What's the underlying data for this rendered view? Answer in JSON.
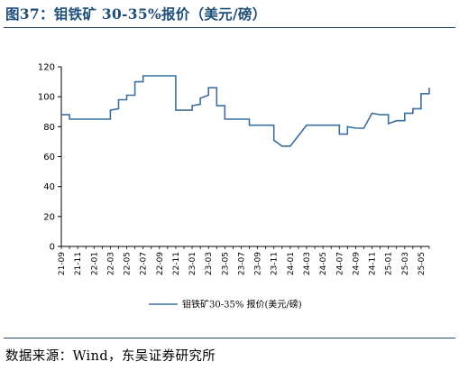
{
  "figure": {
    "title": "图37：钼铁矿 30-35%报价（美元/磅）",
    "source": "数据来源：Wind，东吴证券研究所"
  },
  "colors": {
    "title": "#1f4e79",
    "line": "#3c6e9f",
    "axis": "#000000"
  },
  "chart_data": {
    "type": "line",
    "title": "",
    "xlabel": "",
    "ylabel": "",
    "ylim": [
      0,
      120
    ],
    "yticks": [
      0,
      20,
      40,
      60,
      80,
      100,
      120
    ],
    "grid": false,
    "legend_position": "bottom",
    "x_range": [
      "2021-09",
      "2025-06"
    ],
    "xtick_labels": [
      "21-09",
      "21-11",
      "22-01",
      "22-03",
      "22-05",
      "22-07",
      "22-09",
      "22-11",
      "23-01",
      "23-03",
      "23-05",
      "23-07",
      "23-09",
      "23-11",
      "24-01",
      "24-03",
      "24-05",
      "24-07",
      "24-09",
      "24-11",
      "25-01",
      "25-03",
      "25-05"
    ],
    "series": [
      {
        "name": "钼铁矿30-35% 报价(美元/磅)",
        "points": [
          [
            "2021-09",
            88
          ],
          [
            "2021-10",
            88
          ],
          [
            "2021-10",
            85
          ],
          [
            "2022-03",
            85
          ],
          [
            "2022-03",
            91
          ],
          [
            "2022-04",
            92
          ],
          [
            "2022-04",
            98
          ],
          [
            "2022-05",
            98
          ],
          [
            "2022-05",
            101
          ],
          [
            "2022-06",
            101
          ],
          [
            "2022-06",
            110
          ],
          [
            "2022-07",
            110
          ],
          [
            "2022-07",
            114
          ],
          [
            "2022-11",
            114
          ],
          [
            "2022-11",
            91
          ],
          [
            "2023-01",
            91
          ],
          [
            "2023-01",
            94
          ],
          [
            "2023-02",
            95
          ],
          [
            "2023-02",
            99
          ],
          [
            "2023-03",
            101
          ],
          [
            "2023-03",
            106
          ],
          [
            "2023-04",
            106
          ],
          [
            "2023-04",
            94
          ],
          [
            "2023-05",
            94
          ],
          [
            "2023-05",
            85
          ],
          [
            "2023-08",
            85
          ],
          [
            "2023-08",
            81
          ],
          [
            "2023-11",
            81
          ],
          [
            "2023-11",
            71
          ],
          [
            "2023-12",
            67
          ],
          [
            "2024-01",
            67
          ],
          [
            "2024-03",
            81
          ],
          [
            "2024-07",
            81
          ],
          [
            "2024-07",
            75
          ],
          [
            "2024-08",
            75
          ],
          [
            "2024-08",
            80
          ],
          [
            "2024-09",
            79
          ],
          [
            "2024-10",
            79
          ],
          [
            "2024-11",
            89
          ],
          [
            "2024-12",
            88
          ],
          [
            "2025-01",
            88
          ],
          [
            "2025-01",
            82
          ],
          [
            "2025-02",
            84
          ],
          [
            "2025-03",
            84
          ],
          [
            "2025-03",
            89
          ],
          [
            "2025-04",
            89
          ],
          [
            "2025-04",
            92
          ],
          [
            "2025-05",
            92
          ],
          [
            "2025-05",
            102
          ],
          [
            "2025-06",
            102
          ],
          [
            "2025-06",
            106
          ],
          [
            "2025-06",
            104
          ]
        ]
      }
    ]
  }
}
